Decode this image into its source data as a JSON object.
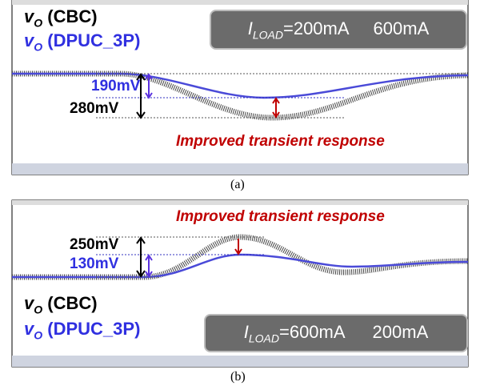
{
  "panels": [
    {
      "legend": [
        {
          "symbol": "v",
          "sub": "O",
          "name": "(CBC)"
        },
        {
          "symbol": "v",
          "sub": "O",
          "name": "(DPUC_3P)"
        }
      ],
      "load": {
        "symbol": "I",
        "sub": "LOAD",
        "from": "=200mA",
        "to": "600mA"
      },
      "measure": [
        "190mV",
        "280mV"
      ],
      "note": "Improved transient response",
      "caption": "(a)"
    },
    {
      "legend": [
        {
          "symbol": "v",
          "sub": "O",
          "name": "(CBC)"
        },
        {
          "symbol": "v",
          "sub": "O",
          "name": "(DPUC_3P)"
        }
      ],
      "load": {
        "symbol": "I",
        "sub": "LOAD",
        "from": "=600mA",
        "to": "200mA"
      },
      "measure": [
        "130mV",
        "250mV"
      ],
      "note": "Improved transient response",
      "caption": "(b)"
    }
  ]
}
